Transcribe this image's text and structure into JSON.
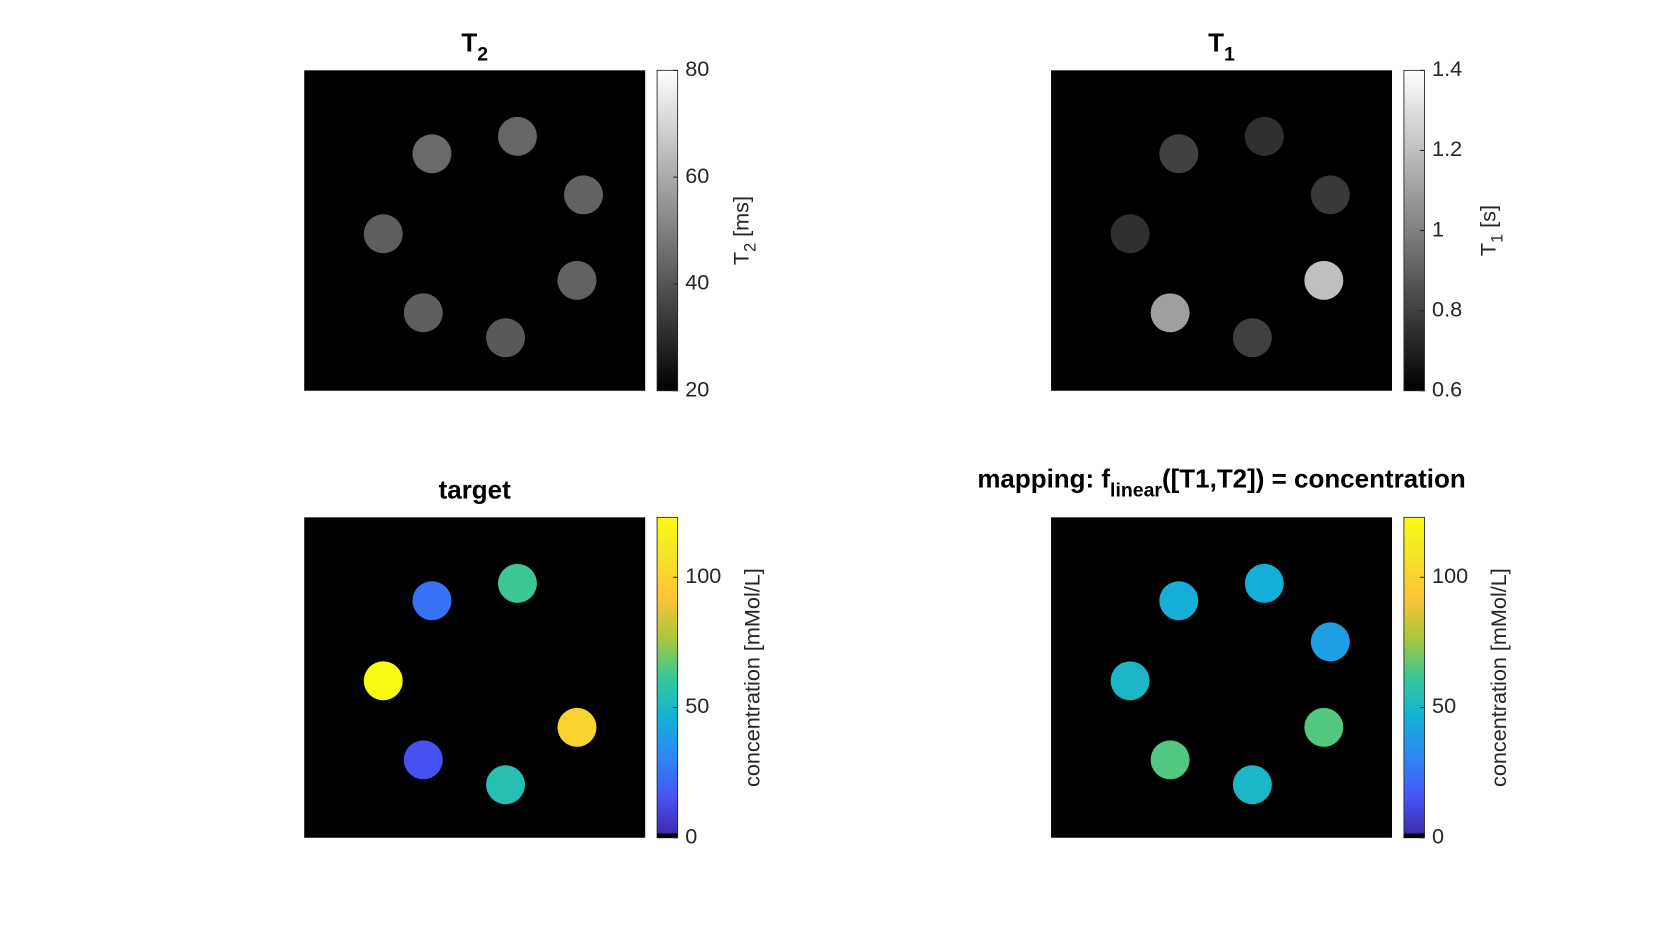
{
  "chart_data": [
    {
      "type": "image",
      "title": [
        {
          "text": "T"
        },
        {
          "sub": "2"
        }
      ],
      "colorbar_label": [
        {
          "text": "T"
        },
        {
          "sub": "2"
        },
        {
          "text": " [ms]"
        }
      ],
      "colormap": "gray",
      "clim": [
        20,
        80
      ],
      "cticks": [
        20,
        40,
        60,
        80
      ],
      "values": [
        45,
        44,
        43,
        42,
        43,
        42,
        41
      ]
    },
    {
      "type": "image",
      "title": [
        {
          "text": "T"
        },
        {
          "sub": "1"
        }
      ],
      "colorbar_label": [
        {
          "text": "T"
        },
        {
          "sub": "1"
        },
        {
          "text": " [s]"
        }
      ],
      "colormap": "gray",
      "clim": [
        0.6,
        1.4
      ],
      "cticks": [
        0.6,
        0.8,
        1,
        1.2,
        1.4
      ],
      "values": [
        0.8,
        0.75,
        0.78,
        0.75,
        1.2,
        1.1,
        0.8
      ]
    },
    {
      "type": "image",
      "title": [
        {
          "text": "target"
        }
      ],
      "colorbar_label": [
        {
          "text": "concentration [mMol/L]"
        }
      ],
      "colormap": "parula",
      "underflow_color": "#000000",
      "clim": [
        0,
        123
      ],
      "cticks": [
        0,
        50,
        100
      ],
      "values": [
        25,
        62,
        0,
        123,
        100,
        15,
        55
      ]
    },
    {
      "type": "image",
      "title": [
        {
          "text": "mapping: f"
        },
        {
          "sub": "linear"
        },
        {
          "text": "([T1,T2]) = concentration"
        }
      ],
      "colorbar_label": [
        {
          "text": "concentration [mMol/L]"
        }
      ],
      "colormap": "parula",
      "underflow_color": "#000000",
      "clim": [
        0,
        123
      ],
      "cticks": [
        0,
        50,
        100
      ],
      "values": [
        45,
        45,
        40,
        50,
        65,
        65,
        50
      ]
    }
  ]
}
